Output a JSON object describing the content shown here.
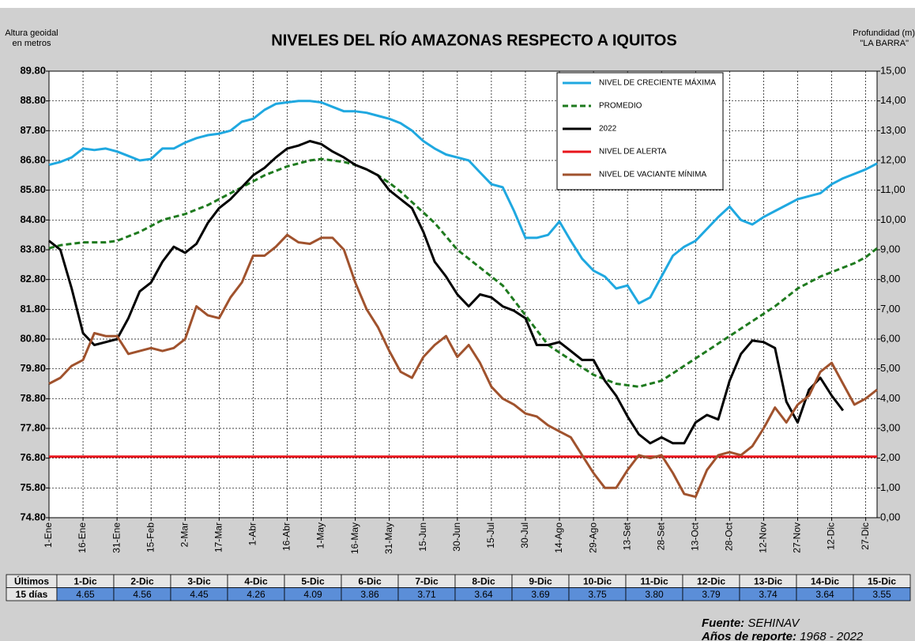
{
  "chart_data": {
    "type": "line",
    "title": "NIVELES  DEL RÍO AMAZONAS  RESPECTO A IQUITOS",
    "y_label": [
      "Altura geoidal",
      "en metros"
    ],
    "y2_label": [
      "Profundidad (m)",
      "\"LA BARRA\""
    ],
    "xlim": [
      0,
      365
    ],
    "xticks": [
      {
        "value": 0,
        "label": "1-Ene"
      },
      {
        "value": 15,
        "label": "16-Ene"
      },
      {
        "value": 30,
        "label": "31-Ene"
      },
      {
        "value": 45,
        "label": "15-Feb"
      },
      {
        "value": 60,
        "label": "2-Mar"
      },
      {
        "value": 75,
        "label": "17-Mar"
      },
      {
        "value": 90,
        "label": "1-Abr"
      },
      {
        "value": 105,
        "label": "16-Abr"
      },
      {
        "value": 120,
        "label": "1-May"
      },
      {
        "value": 135,
        "label": "16-May"
      },
      {
        "value": 150,
        "label": "31-May"
      },
      {
        "value": 165,
        "label": "15-Jun"
      },
      {
        "value": 180,
        "label": "30-Jun"
      },
      {
        "value": 195,
        "label": "15-Jul"
      },
      {
        "value": 210,
        "label": "30-Jul"
      },
      {
        "value": 225,
        "label": "14-Ago"
      },
      {
        "value": 240,
        "label": "29-Ago"
      },
      {
        "value": 255,
        "label": "13-Set"
      },
      {
        "value": 270,
        "label": "28-Set"
      },
      {
        "value": 285,
        "label": "13-Oct"
      },
      {
        "value": 300,
        "label": "28-Oct"
      },
      {
        "value": 315,
        "label": "12-Nov"
      },
      {
        "value": 330,
        "label": "27-Nov"
      },
      {
        "value": 345,
        "label": "12-Dic"
      },
      {
        "value": 360,
        "label": "27-Dic"
      }
    ],
    "ylim": [
      74.8,
      89.8
    ],
    "yticks": [
      {
        "value": 74.8,
        "label": "74.80"
      },
      {
        "value": 75.8,
        "label": "75.80"
      },
      {
        "value": 76.8,
        "label": "76.80"
      },
      {
        "value": 77.8,
        "label": "77.80"
      },
      {
        "value": 78.8,
        "label": "78.80"
      },
      {
        "value": 79.8,
        "label": "79.80"
      },
      {
        "value": 80.8,
        "label": "80.80"
      },
      {
        "value": 81.8,
        "label": "81.80"
      },
      {
        "value": 82.8,
        "label": "82.80"
      },
      {
        "value": 83.8,
        "label": "83.80"
      },
      {
        "value": 84.8,
        "label": "84.80"
      },
      {
        "value": 85.8,
        "label": "85.80"
      },
      {
        "value": 86.8,
        "label": "86.80"
      },
      {
        "value": 87.8,
        "label": "87.80"
      },
      {
        "value": 88.8,
        "label": "88.80"
      },
      {
        "value": 89.8,
        "label": "89.80"
      }
    ],
    "y2lim": [
      0,
      15
    ],
    "y2ticks": [
      {
        "value": 0,
        "label": "0,00"
      },
      {
        "value": 1,
        "label": "1,00"
      },
      {
        "value": 2,
        "label": "2,00"
      },
      {
        "value": 3,
        "label": "3,00"
      },
      {
        "value": 4,
        "label": "4,00"
      },
      {
        "value": 5,
        "label": "5,00"
      },
      {
        "value": 6,
        "label": "6,00"
      },
      {
        "value": 7,
        "label": "7,00"
      },
      {
        "value": 8,
        "label": "8,00"
      },
      {
        "value": 9,
        "label": "9,00"
      },
      {
        "value": 10,
        "label": "10,00"
      },
      {
        "value": 11,
        "label": "11,00"
      },
      {
        "value": 12,
        "label": "12,00"
      },
      {
        "value": 13,
        "label": "13,00"
      },
      {
        "value": 14,
        "label": "14,00"
      },
      {
        "value": 15,
        "label": "15,00"
      }
    ],
    "grid": true,
    "legend": "top-right",
    "x": [
      0,
      5,
      10,
      15,
      20,
      25,
      30,
      35,
      40,
      45,
      50,
      55,
      60,
      65,
      70,
      75,
      80,
      85,
      90,
      95,
      100,
      105,
      110,
      115,
      120,
      125,
      130,
      135,
      140,
      145,
      150,
      155,
      160,
      165,
      170,
      175,
      180,
      185,
      190,
      195,
      200,
      205,
      210,
      215,
      220,
      225,
      230,
      235,
      240,
      245,
      250,
      255,
      260,
      265,
      270,
      275,
      280,
      285,
      290,
      295,
      300,
      305,
      310,
      315,
      320,
      325,
      330,
      335,
      340,
      345,
      350,
      355,
      360,
      365
    ],
    "series": [
      {
        "name": "NIVEL DE CRECIENTE MÁXIMA",
        "color": "#1fa8e0",
        "dash": false,
        "values": [
          86.65,
          86.75,
          86.9,
          87.2,
          87.15,
          87.2,
          87.1,
          86.95,
          86.8,
          86.85,
          87.2,
          87.2,
          87.4,
          87.55,
          87.65,
          87.7,
          87.8,
          88.1,
          88.2,
          88.5,
          88.7,
          88.75,
          88.8,
          88.8,
          88.75,
          88.6,
          88.45,
          88.45,
          88.4,
          88.3,
          88.2,
          88.05,
          87.8,
          87.45,
          87.2,
          87.0,
          86.9,
          86.8,
          86.4,
          86.0,
          85.9,
          85.1,
          84.2,
          84.2,
          84.3,
          84.75,
          84.1,
          83.5,
          83.1,
          82.9,
          82.5,
          82.6,
          82.0,
          82.2,
          82.9,
          83.6,
          83.9,
          84.1,
          84.5,
          84.9,
          85.25,
          84.8,
          84.65,
          84.9,
          85.1,
          85.3,
          85.5,
          85.6,
          85.7,
          86.0,
          86.2,
          86.35,
          86.5,
          86.7
        ]
      },
      {
        "name": "PROMEDIO",
        "color": "#1e7a1e",
        "dash": true,
        "values": [
          83.85,
          83.95,
          84.0,
          84.05,
          84.05,
          84.05,
          84.1,
          84.25,
          84.4,
          84.6,
          84.8,
          84.9,
          85.0,
          85.15,
          85.3,
          85.5,
          85.7,
          85.9,
          86.1,
          86.3,
          86.45,
          86.6,
          86.7,
          86.8,
          86.85,
          86.8,
          86.75,
          86.65,
          86.5,
          86.3,
          86.05,
          85.75,
          85.4,
          85.05,
          84.7,
          84.25,
          83.8,
          83.5,
          83.2,
          82.9,
          82.6,
          82.1,
          81.6,
          81.1,
          80.6,
          80.35,
          80.1,
          79.85,
          79.6,
          79.45,
          79.3,
          79.25,
          79.2,
          79.3,
          79.4,
          79.65,
          79.9,
          80.15,
          80.4,
          80.65,
          80.9,
          81.15,
          81.4,
          81.65,
          81.9,
          82.2,
          82.5,
          82.7,
          82.9,
          83.05,
          83.2,
          83.35,
          83.55,
          83.85
        ]
      },
      {
        "name": "2022",
        "color": "#000000",
        "dash": false,
        "values": [
          84.1,
          83.8,
          82.5,
          81.0,
          80.6,
          80.7,
          80.8,
          81.5,
          82.4,
          82.7,
          83.4,
          83.9,
          83.7,
          84.0,
          84.7,
          85.2,
          85.5,
          85.9,
          86.3,
          86.55,
          86.9,
          87.2,
          87.3,
          87.45,
          87.35,
          87.1,
          86.9,
          86.65,
          86.5,
          86.3,
          85.8,
          85.5,
          85.2,
          84.4,
          83.4,
          82.9,
          82.3,
          81.9,
          82.3,
          82.2,
          81.9,
          81.75,
          81.5,
          80.6,
          80.6,
          80.7,
          80.4,
          80.1,
          80.1,
          79.4,
          78.9,
          78.2,
          77.6,
          77.3,
          77.5,
          77.3,
          77.3,
          78.0,
          78.25,
          78.1,
          79.4,
          80.3,
          80.75,
          80.7,
          80.5,
          78.7,
          78.0,
          79.1,
          79.5,
          78.9,
          78.4,
          null,
          null,
          null
        ]
      },
      {
        "name": "NIVEL DE ALERTA",
        "color": "#e8141b",
        "dash": false,
        "values": [
          76.85,
          76.85,
          76.85,
          76.85,
          76.85,
          76.85,
          76.85,
          76.85,
          76.85,
          76.85,
          76.85,
          76.85,
          76.85,
          76.85,
          76.85,
          76.85,
          76.85,
          76.85,
          76.85,
          76.85,
          76.85,
          76.85,
          76.85,
          76.85,
          76.85,
          76.85,
          76.85,
          76.85,
          76.85,
          76.85,
          76.85,
          76.85,
          76.85,
          76.85,
          76.85,
          76.85,
          76.85,
          76.85,
          76.85,
          76.85,
          76.85,
          76.85,
          76.85,
          76.85,
          76.85,
          76.85,
          76.85,
          76.85,
          76.85,
          76.85,
          76.85,
          76.85,
          76.85,
          76.85,
          76.85,
          76.85,
          76.85,
          76.85,
          76.85,
          76.85,
          76.85,
          76.85,
          76.85,
          76.85,
          76.85,
          76.85,
          76.85,
          76.85,
          76.85,
          76.85,
          76.85,
          76.85,
          76.85,
          76.85
        ]
      },
      {
        "name": "NIVEL DE VACIANTE MÍNIMA",
        "color": "#a0522d",
        "dash": false,
        "values": [
          79.3,
          79.5,
          79.9,
          80.1,
          81.0,
          80.9,
          80.9,
          80.3,
          80.4,
          80.5,
          80.4,
          80.5,
          80.8,
          81.9,
          81.6,
          81.5,
          82.2,
          82.7,
          83.6,
          83.6,
          83.9,
          84.3,
          84.05,
          84.0,
          84.2,
          84.2,
          83.8,
          82.7,
          81.8,
          81.2,
          80.4,
          79.7,
          79.5,
          80.2,
          80.6,
          80.9,
          80.2,
          80.6,
          80.0,
          79.2,
          78.8,
          78.6,
          78.3,
          78.2,
          77.9,
          77.7,
          77.5,
          76.9,
          76.3,
          75.8,
          75.8,
          76.4,
          76.9,
          76.8,
          76.9,
          76.3,
          75.6,
          75.5,
          76.4,
          76.9,
          77.0,
          76.9,
          77.2,
          77.8,
          78.5,
          78.0,
          78.6,
          78.9,
          79.7,
          80.0,
          79.3,
          78.6,
          78.8,
          79.1
        ]
      }
    ]
  },
  "table": {
    "header": [
      "Últimos",
      "1-Dic",
      "2-Dic",
      "3-Dic",
      "4-Dic",
      "5-Dic",
      "6-Dic",
      "7-Dic",
      "8-Dic",
      "9-Dic",
      "10-Dic",
      "11-Dic",
      "12-Dic",
      "13-Dic",
      "14-Dic",
      "15-Dic"
    ],
    "row": [
      "15 días",
      "4.65",
      "4.56",
      "4.45",
      "4.26",
      "4.09",
      "3.86",
      "3.71",
      "3.64",
      "3.69",
      "3.75",
      "3.80",
      "3.79",
      "3.74",
      "3.64",
      "3.55"
    ]
  },
  "footer": {
    "source_label": "Fuente:",
    "source": "SEHINAV",
    "years_label": "Años de reporte:",
    "years": "1968 - 2022"
  }
}
